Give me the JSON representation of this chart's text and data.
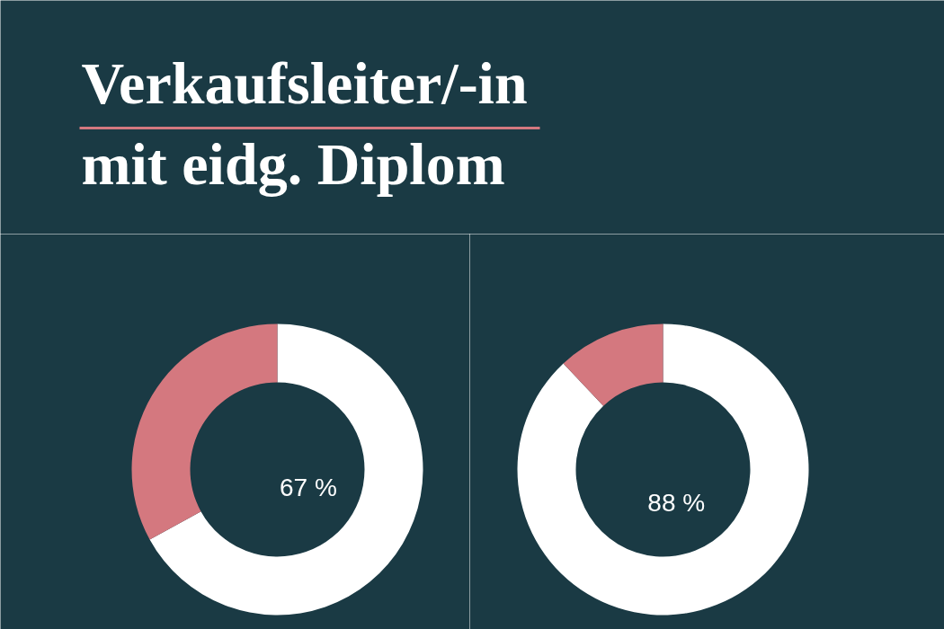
{
  "chart_data": [
    {
      "type": "donut",
      "title": "Verkaufsleiter/-in\nmit eidg. Diplom",
      "categories": [
        null,
        null
      ],
      "values": [
        67,
        33
      ],
      "colors": [
        "#ffffff",
        "#d4787f"
      ],
      "value_labels": [
        "67 %",
        null
      ]
    },
    {
      "type": "donut",
      "categories": [
        null,
        null
      ],
      "values": [
        88,
        12
      ],
      "colors": [
        "#ffffff",
        "#d4787f"
      ],
      "value_labels": [
        "88 %",
        null
      ]
    }
  ]
}
